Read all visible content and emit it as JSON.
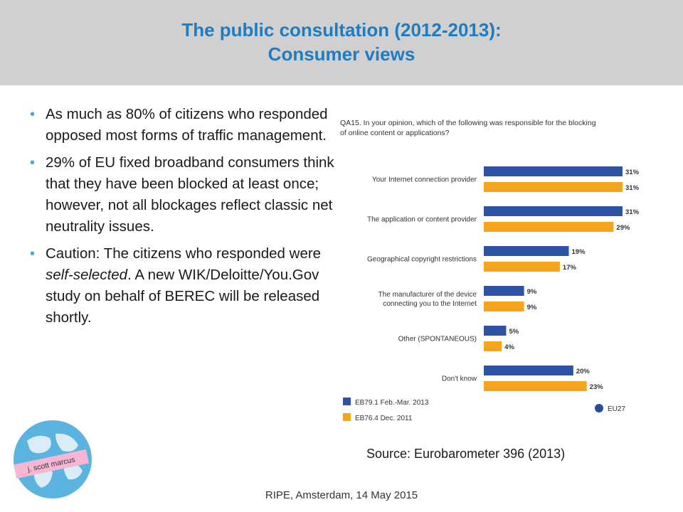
{
  "slide": {
    "title_line1": "The public consultation (2012-2013):",
    "title_line2": "Consumer views",
    "bullets": [
      {
        "text": "As much as 80% of citizens who responded opposed most forms of traffic management."
      },
      {
        "text": "29% of EU fixed broadband consumers think that they have been blocked at least once; however, not all blockages reflect classic net neutrality issues."
      },
      {
        "pre": "Caution: The citizens who responded were ",
        "em": "self-selected",
        "post": ". A new WIK/Deloitte/You.Gov study on behalf of BEREC will be released shortly."
      }
    ],
    "source": "Source: Eurobarometer 396 (2013)",
    "footer": "RIPE, Amsterdam, 14 May 2015",
    "logo_text": "j. scott marcus"
  },
  "colors": {
    "title": "#1f7cc1",
    "header_bg": "#d0d0d0",
    "bullet": "#4ba3d8",
    "series_blue": "#2e53a4",
    "series_orange": "#f5a41d"
  },
  "chart_data": {
    "type": "bar",
    "orientation": "horizontal",
    "question_line1": "QA15. In your opinion, which of the following was responsible for the blocking",
    "question_line2": "of online content or applications?",
    "categories": [
      [
        "Your Internet connection provider"
      ],
      [
        "The application or content provider"
      ],
      [
        "Geographical copyright restrictions"
      ],
      [
        "The manufacturer of the device",
        "connecting you to the Internet"
      ],
      [
        "Other (SPONTANEOUS)"
      ],
      [
        "Don't know"
      ]
    ],
    "series": [
      {
        "name": "EB79.1 Feb.-Mar. 2013",
        "values": [
          31,
          31,
          19,
          9,
          5,
          20
        ]
      },
      {
        "name": "EB76.4 Dec. 2011",
        "values": [
          31,
          29,
          17,
          9,
          4,
          23
        ]
      }
    ],
    "value_suffix": "%",
    "legend_extra": "EU27",
    "xlim": [
      0,
      31
    ],
    "legend_position": "bottom"
  }
}
